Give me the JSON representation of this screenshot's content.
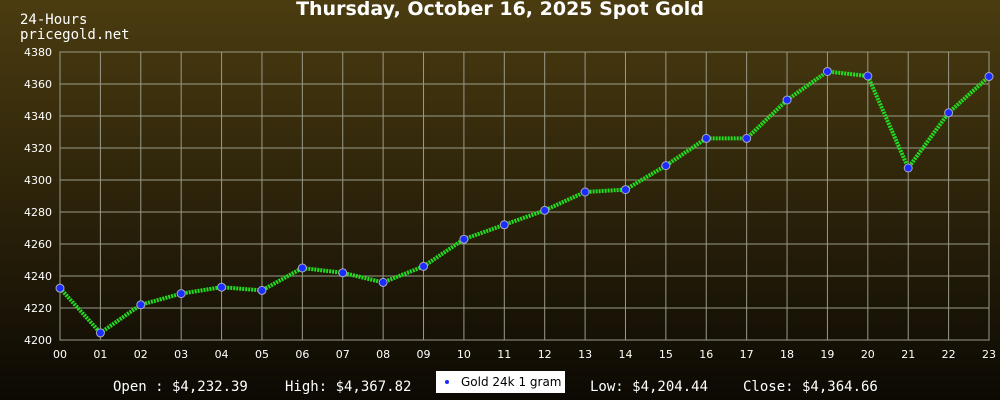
{
  "chart_data": {
    "type": "line",
    "title": "Thursday, October 16, 2025 Spot Gold",
    "subtitle_lines": [
      "24-Hours",
      "pricegold.net"
    ],
    "categories": [
      "00",
      "01",
      "02",
      "03",
      "04",
      "05",
      "06",
      "07",
      "08",
      "09",
      "10",
      "11",
      "12",
      "13",
      "14",
      "15",
      "16",
      "17",
      "18",
      "19",
      "20",
      "21",
      "22",
      "23"
    ],
    "series": [
      {
        "name": "Gold 24k 1 gram",
        "color": "#22dd22",
        "marker_color": "#1a2cff",
        "values": [
          4232.39,
          4204.44,
          4222,
          4229,
          4233,
          4231,
          4245,
          4242,
          4236,
          4246,
          4263,
          4272,
          4281,
          4292.5,
          4294,
          4309,
          4326,
          4326,
          4350,
          4367.82,
          4365,
          4307.5,
          4342,
          4364.66
        ]
      }
    ],
    "ylim": [
      4200,
      4380
    ],
    "yticks": [
      4200,
      4220,
      4240,
      4260,
      4280,
      4300,
      4320,
      4340,
      4360,
      4380
    ],
    "grid": true,
    "stats": {
      "open": "Open : $4,232.39",
      "high": "High: $4,367.82",
      "low": "Low: $4,204.44",
      "close": "Close: $4,364.66"
    }
  }
}
